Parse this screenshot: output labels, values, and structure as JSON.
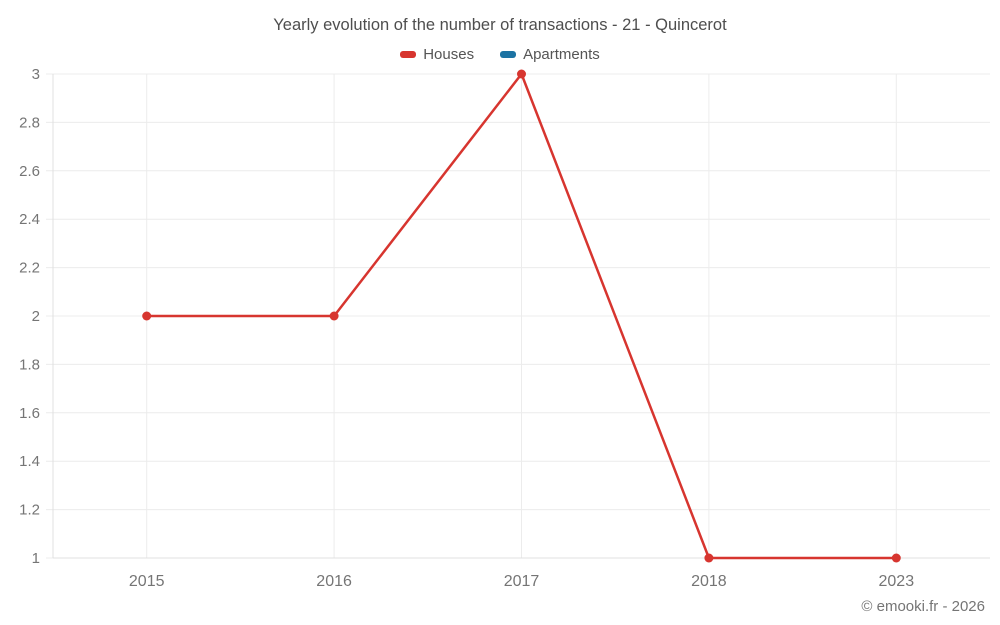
{
  "chart_data": {
    "type": "line",
    "title": "Yearly evolution of the number of transactions - 21 - Quincerot",
    "categories": [
      "2015",
      "2016",
      "2017",
      "2018",
      "2023"
    ],
    "series": [
      {
        "name": "Houses",
        "color": "#d7352f",
        "values": [
          2,
          2,
          3,
          1,
          1
        ]
      },
      {
        "name": "Apartments",
        "color": "#1c73a3",
        "values": [
          null,
          null,
          null,
          null,
          null
        ]
      }
    ],
    "xlabel": "",
    "ylabel": "",
    "ylim": [
      1,
      3
    ],
    "yticks": [
      1,
      1.2,
      1.4,
      1.6,
      1.8,
      2,
      2.2,
      2.4,
      2.6,
      2.8,
      3
    ],
    "grid": "on",
    "legend_position": "top",
    "marker_radius": 4.5,
    "line_width": 2.5,
    "grid_color": "#ececec",
    "axis_color": "#e0e0e0",
    "tick_label_color": "#757575",
    "title_color": "#4e4e4e"
  },
  "footer": {
    "copyright": "© emooki.fr - 2026"
  }
}
